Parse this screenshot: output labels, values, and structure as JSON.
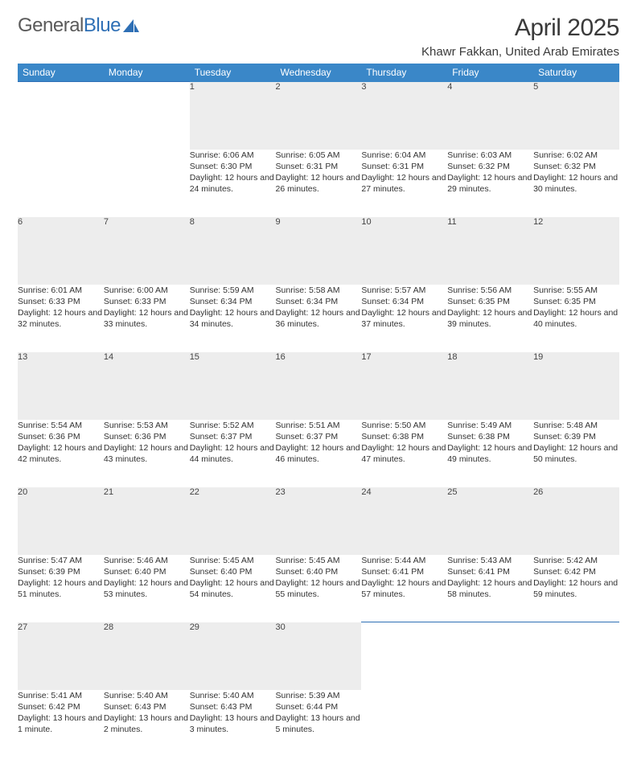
{
  "logo": {
    "text1": "General",
    "text2": "Blue"
  },
  "title": "April 2025",
  "location": "Khawr Fakkan, United Arab Emirates",
  "colors": {
    "header_bg": "#3a87c8",
    "header_text": "#ffffff",
    "daynum_bg": "#ededed",
    "daynum_border_top": "#2e6fb5",
    "text": "#333333",
    "page_bg": "#ffffff"
  },
  "columns": [
    "Sunday",
    "Monday",
    "Tuesday",
    "Wednesday",
    "Thursday",
    "Friday",
    "Saturday"
  ],
  "weeks": [
    [
      null,
      null,
      {
        "n": "1",
        "sunrise": "6:06 AM",
        "sunset": "6:30 PM",
        "daylight": "12 hours and 24 minutes."
      },
      {
        "n": "2",
        "sunrise": "6:05 AM",
        "sunset": "6:31 PM",
        "daylight": "12 hours and 26 minutes."
      },
      {
        "n": "3",
        "sunrise": "6:04 AM",
        "sunset": "6:31 PM",
        "daylight": "12 hours and 27 minutes."
      },
      {
        "n": "4",
        "sunrise": "6:03 AM",
        "sunset": "6:32 PM",
        "daylight": "12 hours and 29 minutes."
      },
      {
        "n": "5",
        "sunrise": "6:02 AM",
        "sunset": "6:32 PM",
        "daylight": "12 hours and 30 minutes."
      }
    ],
    [
      {
        "n": "6",
        "sunrise": "6:01 AM",
        "sunset": "6:33 PM",
        "daylight": "12 hours and 32 minutes."
      },
      {
        "n": "7",
        "sunrise": "6:00 AM",
        "sunset": "6:33 PM",
        "daylight": "12 hours and 33 minutes."
      },
      {
        "n": "8",
        "sunrise": "5:59 AM",
        "sunset": "6:34 PM",
        "daylight": "12 hours and 34 minutes."
      },
      {
        "n": "9",
        "sunrise": "5:58 AM",
        "sunset": "6:34 PM",
        "daylight": "12 hours and 36 minutes."
      },
      {
        "n": "10",
        "sunrise": "5:57 AM",
        "sunset": "6:34 PM",
        "daylight": "12 hours and 37 minutes."
      },
      {
        "n": "11",
        "sunrise": "5:56 AM",
        "sunset": "6:35 PM",
        "daylight": "12 hours and 39 minutes."
      },
      {
        "n": "12",
        "sunrise": "5:55 AM",
        "sunset": "6:35 PM",
        "daylight": "12 hours and 40 minutes."
      }
    ],
    [
      {
        "n": "13",
        "sunrise": "5:54 AM",
        "sunset": "6:36 PM",
        "daylight": "12 hours and 42 minutes."
      },
      {
        "n": "14",
        "sunrise": "5:53 AM",
        "sunset": "6:36 PM",
        "daylight": "12 hours and 43 minutes."
      },
      {
        "n": "15",
        "sunrise": "5:52 AM",
        "sunset": "6:37 PM",
        "daylight": "12 hours and 44 minutes."
      },
      {
        "n": "16",
        "sunrise": "5:51 AM",
        "sunset": "6:37 PM",
        "daylight": "12 hours and 46 minutes."
      },
      {
        "n": "17",
        "sunrise": "5:50 AM",
        "sunset": "6:38 PM",
        "daylight": "12 hours and 47 minutes."
      },
      {
        "n": "18",
        "sunrise": "5:49 AM",
        "sunset": "6:38 PM",
        "daylight": "12 hours and 49 minutes."
      },
      {
        "n": "19",
        "sunrise": "5:48 AM",
        "sunset": "6:39 PM",
        "daylight": "12 hours and 50 minutes."
      }
    ],
    [
      {
        "n": "20",
        "sunrise": "5:47 AM",
        "sunset": "6:39 PM",
        "daylight": "12 hours and 51 minutes."
      },
      {
        "n": "21",
        "sunrise": "5:46 AM",
        "sunset": "6:40 PM",
        "daylight": "12 hours and 53 minutes."
      },
      {
        "n": "22",
        "sunrise": "5:45 AM",
        "sunset": "6:40 PM",
        "daylight": "12 hours and 54 minutes."
      },
      {
        "n": "23",
        "sunrise": "5:45 AM",
        "sunset": "6:40 PM",
        "daylight": "12 hours and 55 minutes."
      },
      {
        "n": "24",
        "sunrise": "5:44 AM",
        "sunset": "6:41 PM",
        "daylight": "12 hours and 57 minutes."
      },
      {
        "n": "25",
        "sunrise": "5:43 AM",
        "sunset": "6:41 PM",
        "daylight": "12 hours and 58 minutes."
      },
      {
        "n": "26",
        "sunrise": "5:42 AM",
        "sunset": "6:42 PM",
        "daylight": "12 hours and 59 minutes."
      }
    ],
    [
      {
        "n": "27",
        "sunrise": "5:41 AM",
        "sunset": "6:42 PM",
        "daylight": "13 hours and 1 minute."
      },
      {
        "n": "28",
        "sunrise": "5:40 AM",
        "sunset": "6:43 PM",
        "daylight": "13 hours and 2 minutes."
      },
      {
        "n": "29",
        "sunrise": "5:40 AM",
        "sunset": "6:43 PM",
        "daylight": "13 hours and 3 minutes."
      },
      {
        "n": "30",
        "sunrise": "5:39 AM",
        "sunset": "6:44 PM",
        "daylight": "13 hours and 5 minutes."
      },
      null,
      null,
      null
    ]
  ],
  "labels": {
    "sunrise": "Sunrise:",
    "sunset": "Sunset:",
    "daylight": "Daylight:"
  }
}
